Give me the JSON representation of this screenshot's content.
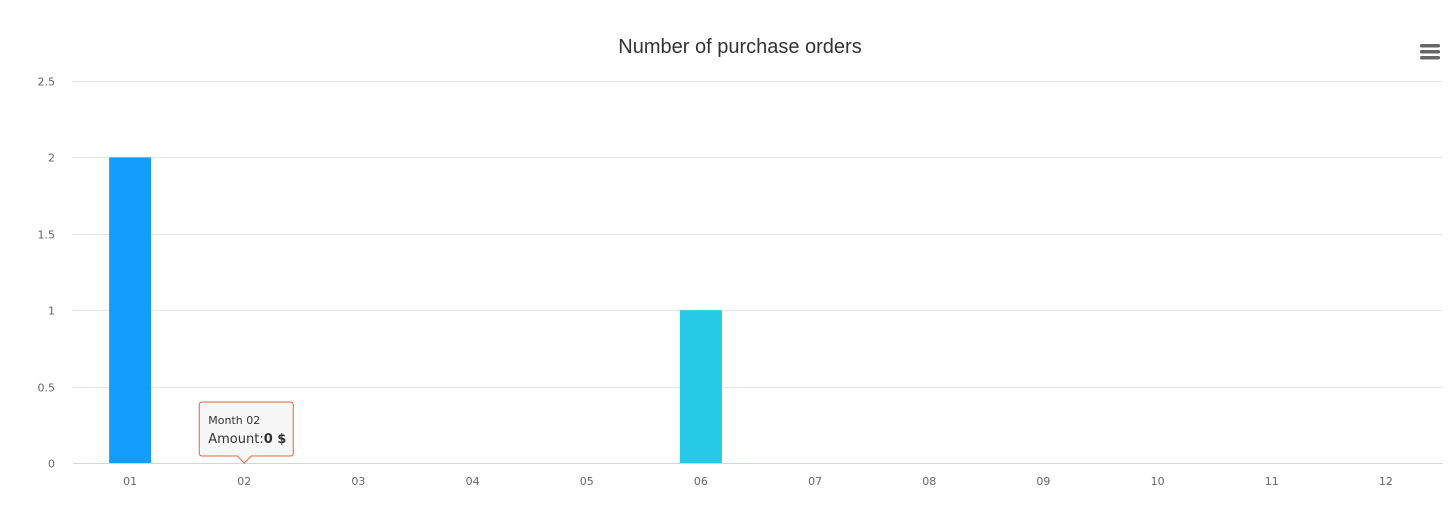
{
  "chart_data": {
    "type": "bar",
    "title": "Number of purchase orders",
    "categories": [
      "01",
      "02",
      "03",
      "04",
      "05",
      "06",
      "07",
      "08",
      "09",
      "10",
      "11",
      "12"
    ],
    "values": [
      2,
      0,
      0,
      0,
      0,
      1,
      0,
      0,
      0,
      0,
      0,
      0
    ],
    "bar_colors": [
      "#139dfb",
      "#139dfb",
      "#139dfb",
      "#139dfb",
      "#139dfb",
      "#26c9e5",
      "#139dfb",
      "#139dfb",
      "#139dfb",
      "#139dfb",
      "#139dfb",
      "#139dfb"
    ],
    "ylim": [
      0,
      2.5
    ],
    "y_ticks": [
      "0",
      "0.5",
      "1",
      "1.5",
      "2",
      "2.5"
    ],
    "y_tick_values": [
      0,
      0.5,
      1,
      1.5,
      2,
      2.5
    ],
    "xlabel": "",
    "ylabel": "",
    "grid": true,
    "legend": false
  },
  "tooltip": {
    "category_index": 1,
    "header": "Month 02",
    "amount_label": "Amount:",
    "amount_value": "0 $",
    "border_color": "#e4643f"
  },
  "toolbar": {
    "menu_icon": "hamburger-menu-icon"
  },
  "colors": {
    "grid": "#e6e6e6",
    "axis": "#ccd6eb",
    "text": "#666666",
    "title": "#333333"
  }
}
